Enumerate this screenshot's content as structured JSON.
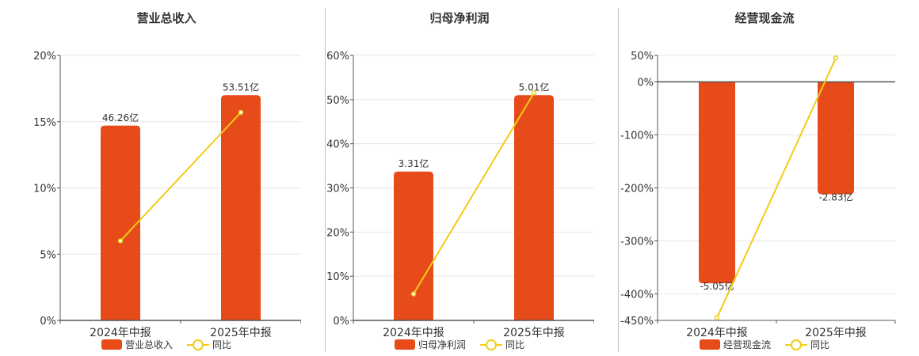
{
  "colors": {
    "bar": "#e84b1a",
    "line": "#f0cc16",
    "grid": "#e6e6e6",
    "axis": "#555555"
  },
  "chart_data": [
    {
      "type": "bar",
      "title": "营业总收入",
      "categories": [
        "2024年中报",
        "2025年中报"
      ],
      "series": [
        {
          "name": "营业总收入",
          "values": [
            14.7,
            17.0
          ],
          "labels": [
            "46.26亿",
            "53.51亿"
          ]
        },
        {
          "name": "同比",
          "type": "line",
          "values": [
            6.0,
            15.7
          ]
        }
      ],
      "y_ticks": [
        "0%",
        "5%",
        "10%",
        "15%",
        "20%"
      ],
      "ylim": [
        0,
        20
      ],
      "legend": [
        "营业总收入",
        "同比"
      ],
      "legend_position": "bottom",
      "grid": true
    },
    {
      "type": "bar",
      "title": "归母净利润",
      "categories": [
        "2024年中报",
        "2025年中报"
      ],
      "series": [
        {
          "name": "归母净利润",
          "values": [
            33.7,
            51.0
          ],
          "labels": [
            "3.31亿",
            "5.01亿"
          ]
        },
        {
          "name": "同比",
          "type": "line",
          "values": [
            6.0,
            51.5
          ]
        }
      ],
      "y_ticks": [
        "0%",
        "10%",
        "20%",
        "30%",
        "40%",
        "50%",
        "60%"
      ],
      "ylim": [
        0,
        60
      ],
      "legend": [
        "归母净利润",
        "同比"
      ],
      "legend_position": "bottom",
      "grid": true
    },
    {
      "type": "bar",
      "title": "经营现金流",
      "categories": [
        "2024年中报",
        "2025年中报"
      ],
      "series": [
        {
          "name": "经营现金流",
          "values": [
            -380,
            -212
          ],
          "labels": [
            "-5.05亿",
            "-2.83亿"
          ]
        },
        {
          "name": "同比",
          "type": "line",
          "values": [
            -445,
            45
          ]
        }
      ],
      "y_ticks": [
        "50%",
        "0%",
        "-100%",
        "-200%",
        "-300%",
        "-400%",
        "-450%"
      ],
      "y_tick_values": [
        50,
        0,
        -100,
        -200,
        -300,
        -400,
        -450
      ],
      "ylim": [
        -450,
        50
      ],
      "legend": [
        "经营现金流",
        "同比"
      ],
      "legend_position": "bottom",
      "grid": true
    }
  ]
}
